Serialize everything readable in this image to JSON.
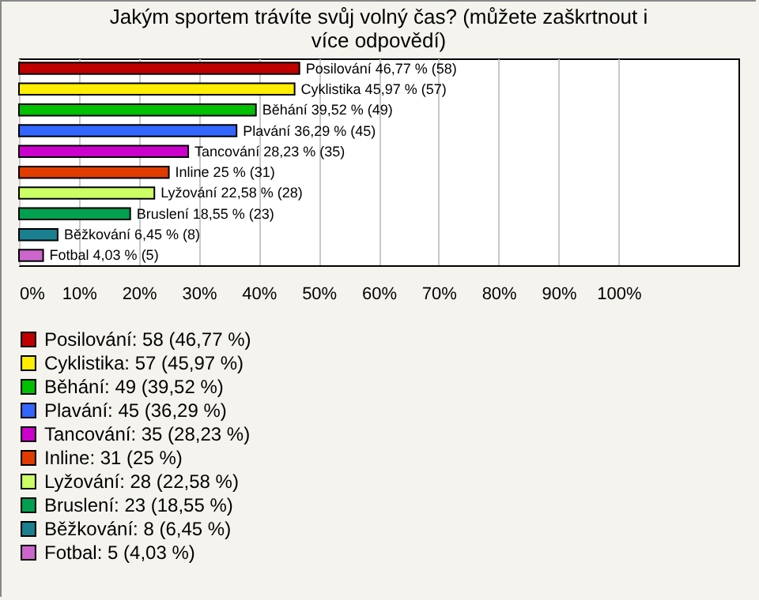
{
  "chart_data": {
    "type": "bar",
    "orientation": "horizontal",
    "title": "Jakým sportem trávíte svůj volný čas? (můžete zaškrtnout i více odpovědí)",
    "categories": [
      null,
      null,
      null,
      null,
      null,
      null,
      null,
      null,
      null,
      null
    ],
    "series": [
      {
        "name": "Posilování: 58 (46,77 %)",
        "color": "#c00000",
        "values": [
          46.77,
          null,
          null,
          null,
          null,
          null,
          null,
          null,
          null,
          null
        ],
        "value_labels": [
          "Posilování 46,77 % (58)",
          null,
          null,
          null,
          null,
          null,
          null,
          null,
          null,
          null
        ]
      },
      {
        "name": "Cyklistika: 57 (45,97 %)",
        "color": "#ffee00",
        "values": [
          null,
          45.97,
          null,
          null,
          null,
          null,
          null,
          null,
          null,
          null
        ],
        "value_labels": [
          null,
          "Cyklistika 45,97 % (57)",
          null,
          null,
          null,
          null,
          null,
          null,
          null,
          null
        ]
      },
      {
        "name": "Běhání: 49 (39,52 %)",
        "color": "#00c000",
        "values": [
          null,
          null,
          39.52,
          null,
          null,
          null,
          null,
          null,
          null,
          null
        ],
        "value_labels": [
          null,
          null,
          "Běhání 39,52 % (49)",
          null,
          null,
          null,
          null,
          null,
          null,
          null
        ]
      },
      {
        "name": "Plavání: 45 (36,29 %)",
        "color": "#3366ff",
        "values": [
          null,
          null,
          null,
          36.29,
          null,
          null,
          null,
          null,
          null,
          null
        ],
        "value_labels": [
          null,
          null,
          null,
          "Plavání 36,29 % (45)",
          null,
          null,
          null,
          null,
          null,
          null
        ]
      },
      {
        "name": "Tancování: 35 (28,23 %)",
        "color": "#cc00cc",
        "values": [
          null,
          null,
          null,
          null,
          28.23,
          null,
          null,
          null,
          null,
          null
        ],
        "value_labels": [
          null,
          null,
          null,
          null,
          "Tancování 28,23 % (35)",
          null,
          null,
          null,
          null,
          null
        ]
      },
      {
        "name": "Inline: 31 (25 %)",
        "color": "#e03c00",
        "values": [
          null,
          null,
          null,
          null,
          null,
          25,
          null,
          null,
          null,
          null
        ],
        "value_labels": [
          null,
          null,
          null,
          null,
          null,
          "Inline 25 % (31)",
          null,
          null,
          null,
          null
        ]
      },
      {
        "name": "Lyžování: 28 (22,58 %)",
        "color": "#ccff66",
        "values": [
          null,
          null,
          null,
          null,
          null,
          null,
          22.58,
          null,
          null,
          null
        ],
        "value_labels": [
          null,
          null,
          null,
          null,
          null,
          null,
          "Lyžování 22,58 % (28)",
          null,
          null,
          null
        ]
      },
      {
        "name": "Bruslení: 23 (18,55 %)",
        "color": "#00a050",
        "values": [
          null,
          null,
          null,
          null,
          null,
          null,
          null,
          18.55,
          null,
          null
        ],
        "value_labels": [
          null,
          null,
          null,
          null,
          null,
          null,
          null,
          "Bruslení 18,55 % (23)",
          null,
          null
        ]
      },
      {
        "name": "Běžkování: 8 (6,45 %)",
        "color": "#1a8090",
        "values": [
          null,
          null,
          null,
          null,
          null,
          null,
          null,
          null,
          6.45,
          null
        ],
        "value_labels": [
          null,
          null,
          null,
          null,
          null,
          null,
          null,
          null,
          "Běžkování 6,45 % (8)",
          null
        ]
      },
      {
        "name": "Fotbal: 5 (4,03 %)",
        "color": "#cc66cc",
        "values": [
          null,
          null,
          null,
          null,
          null,
          null,
          null,
          null,
          null,
          4.03
        ],
        "value_labels": [
          null,
          null,
          null,
          null,
          null,
          null,
          null,
          null,
          null,
          "Fotbal 4,03 % (5)"
        ]
      }
    ],
    "xlim": [
      0,
      120
    ],
    "xticks": [
      {
        "value": 0,
        "label": "0%"
      },
      {
        "value": 10,
        "label": "10%"
      },
      {
        "value": 20,
        "label": "20%"
      },
      {
        "value": 30,
        "label": "30%"
      },
      {
        "value": 40,
        "label": "40%"
      },
      {
        "value": 50,
        "label": "50%"
      },
      {
        "value": 60,
        "label": "60%"
      },
      {
        "value": 70,
        "label": "70%"
      },
      {
        "value": 80,
        "label": "80%"
      },
      {
        "value": 90,
        "label": "90%"
      },
      {
        "value": 100,
        "label": "100%"
      }
    ],
    "grid": "x",
    "legend": "bottom"
  }
}
